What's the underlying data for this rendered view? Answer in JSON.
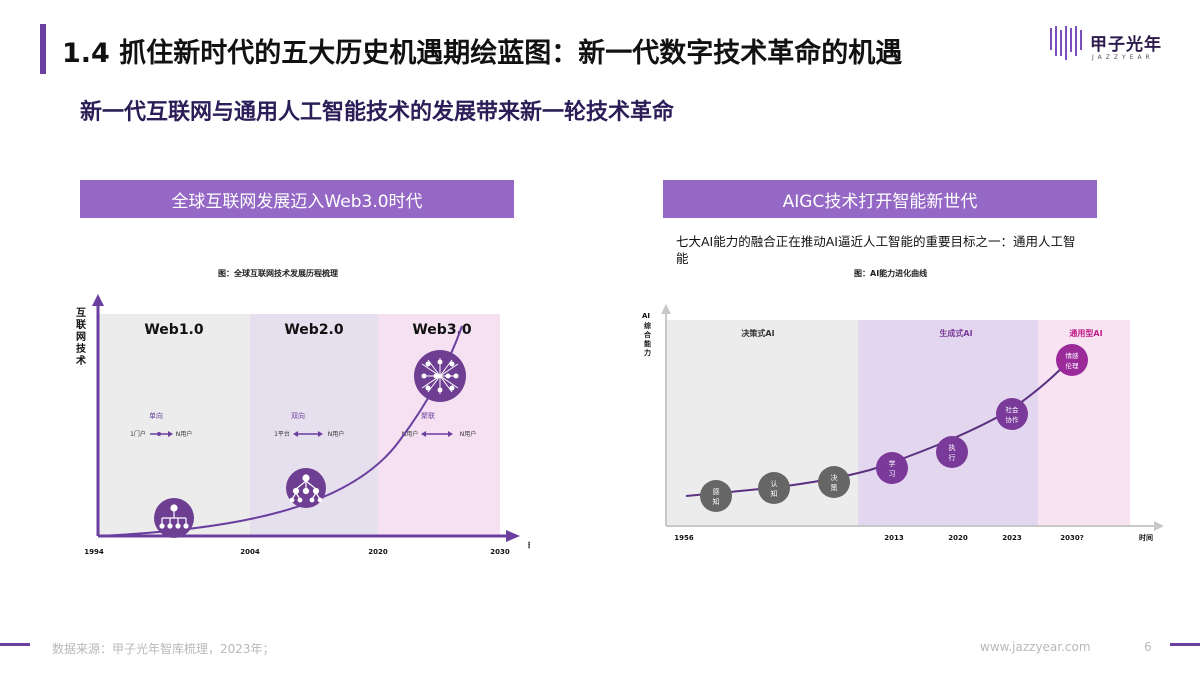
{
  "header": {
    "title": "1.4 抓住新时代的五大历史机遇期绘蓝图：新一代数字技术革命的机遇",
    "subtitle": "新一代互联网与通用人工智能技术的发展带来新一轮技术革命",
    "logo_text": "甲子光年",
    "logo_sub": "JAZZYEAR"
  },
  "left_panel": {
    "heading": "全球互联网发展迈入Web3.0时代",
    "caption": "图：全球互联网技术发展历程梳理",
    "y_axis_label": "互联网技术",
    "x_axis_label": "时间",
    "years": [
      "1994",
      "2004",
      "2020",
      "2030"
    ],
    "eras": [
      {
        "name": "Web1.0",
        "mode": "单向",
        "from": "1门户",
        "to": "N用户"
      },
      {
        "name": "Web2.0",
        "mode": "双向",
        "from": "1平台",
        "to": "N用户"
      },
      {
        "name": "Web3.0",
        "mode": "聚联",
        "from": "N用户",
        "to": "N用户"
      }
    ]
  },
  "right_panel": {
    "heading": "AIGC技术打开智能新世代",
    "description": "七大AI能力的融合正在推动AI逼近人工智能的重要目标之一：通用人工智能",
    "caption": "图：AI能力进化曲线",
    "y_axis_label": "AI综合能力",
    "x_axis_label": "时间",
    "stages": [
      "决策式AI",
      "生成式AI",
      "通用型AI"
    ],
    "years": [
      "1956",
      "2013",
      "2020",
      "2023",
      "2030?"
    ],
    "abilities": [
      "感知",
      "认知",
      "决策",
      "学习",
      "执行",
      "社会协作",
      "情感伦理"
    ]
  },
  "footer": {
    "source": "数据来源：甲子光年智库梳理，2023年；",
    "url": "www.jazzyear.com",
    "page": "6"
  },
  "colors": {
    "accent": "#6b3fa0",
    "section": "#9568c6",
    "dark_node": "#6a6a6a",
    "purple_node": "#7a3a9a",
    "magenta_node": "#9a2a9a"
  }
}
